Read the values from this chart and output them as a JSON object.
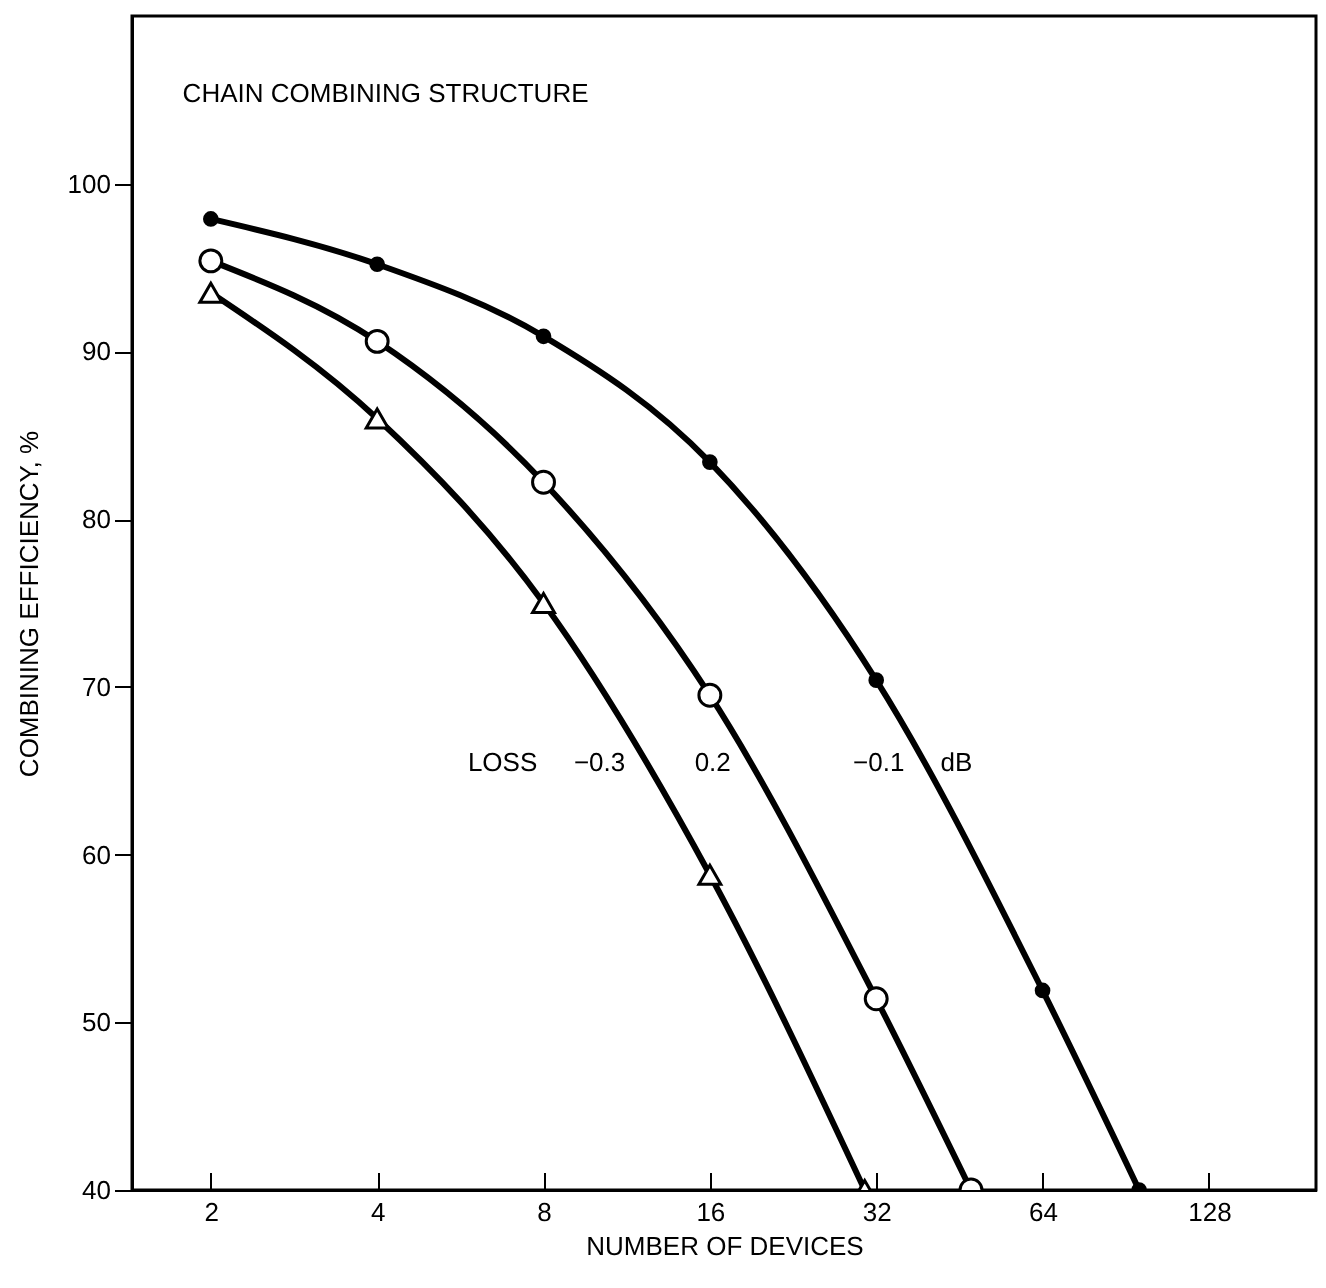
{
  "chart_data": {
    "type": "line",
    "title": "CHAIN COMBINING STRUCTURE",
    "xlabel": "NUMBER OF DEVICES",
    "ylabel": "COMBINING EFFICIENCY, %",
    "log": "x",
    "xlim": [
      1.44,
      200
    ],
    "xticks": [
      2,
      4,
      8,
      16,
      32,
      64,
      128
    ],
    "ylim": [
      40,
      110
    ],
    "yticks": [
      40,
      50,
      60,
      70,
      80,
      90,
      100
    ],
    "grid": false,
    "line_style": "solid",
    "series": [
      {
        "name": "−0.1",
        "color": "#000000",
        "marker": "circle",
        "x": [
          2,
          4,
          8,
          16,
          32,
          64,
          95.7
        ],
        "values": [
          97.9,
          95.2,
          90.9,
          83.4,
          70.4,
          51.9,
          40
        ]
      },
      {
        "name": "0.2",
        "color": "#000000",
        "marker": "circle",
        "x": [
          2,
          4,
          8,
          16,
          32,
          47.5
        ],
        "values": [
          95.4,
          90.6,
          82.2,
          69.5,
          51.4,
          40
        ]
      },
      {
        "name": "−0.3",
        "color": "#000000",
        "marker": "triangle",
        "x": [
          2,
          4,
          8,
          16,
          30.5
        ],
        "values": [
          93.5,
          86.0,
          75.0,
          58.8,
          40
        ]
      }
    ],
    "annotations": [
      "LOSS",
      "dB"
    ]
  }
}
